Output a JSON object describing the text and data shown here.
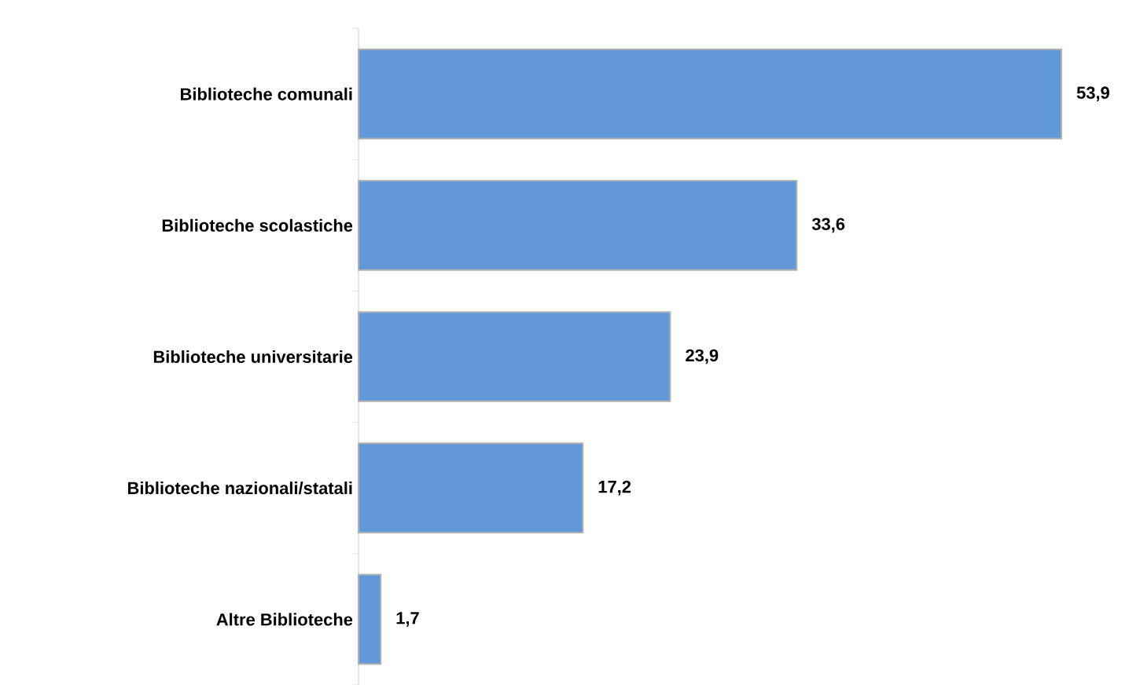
{
  "chart_data": {
    "type": "bar",
    "orientation": "horizontal",
    "categories": [
      "Biblioteche comunali",
      "Biblioteche scolastiche",
      "Biblioteche universitarie",
      "Biblioteche nazionali/statali",
      "Altre Biblioteche"
    ],
    "values": [
      53.9,
      33.6,
      23.9,
      17.2,
      1.7
    ],
    "value_labels": [
      "53,9",
      "33,6",
      "23,9",
      "17,2",
      "1,7"
    ],
    "color": "#6198d8",
    "tick_labels": "y"
  }
}
